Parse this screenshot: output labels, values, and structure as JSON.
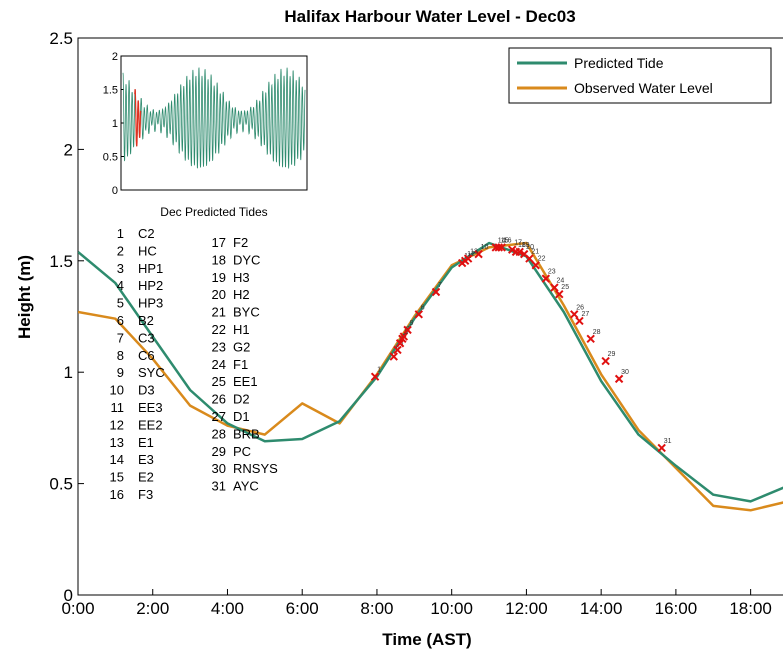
{
  "chart_data": {
    "type": "line",
    "title": "Halifax Harbour Water Level - Dec03",
    "xlabel": "Time (AST)",
    "ylabel": "Height (m)",
    "xlim": [
      0,
      19
    ],
    "ylim": [
      0,
      2.5
    ],
    "x_ticks": [
      "0:00",
      "2:00",
      "4:00",
      "6:00",
      "8:00",
      "10:00",
      "12:00",
      "14:00",
      "16:00",
      "18:00"
    ],
    "y_ticks": [
      "0",
      "0.5",
      "1",
      "1.5",
      "2",
      "2.5"
    ],
    "grid": false,
    "legend_position": "top-right",
    "series": [
      {
        "name": "Predicted Tide",
        "color": "#2e8b6e",
        "x": [
          0,
          1,
          2,
          3,
          4,
          5,
          6,
          7,
          8,
          9,
          10,
          11,
          12,
          13,
          14,
          15,
          16,
          17,
          18,
          19
        ],
        "y": [
          1.54,
          1.4,
          1.16,
          0.92,
          0.77,
          0.69,
          0.7,
          0.78,
          0.98,
          1.24,
          1.47,
          1.58,
          1.52,
          1.27,
          0.96,
          0.72,
          0.58,
          0.45,
          0.42,
          0.49
        ]
      },
      {
        "name": "Observed Water Level",
        "color": "#d98a1c",
        "x": [
          0,
          1,
          2,
          3,
          4,
          5,
          6,
          7,
          8,
          9,
          10,
          11,
          12,
          13,
          14,
          15,
          16,
          17,
          18,
          19
        ],
        "y": [
          1.27,
          1.24,
          1.06,
          0.85,
          0.76,
          0.72,
          0.86,
          0.77,
          0.99,
          1.25,
          1.48,
          1.56,
          1.58,
          1.3,
          0.99,
          0.74,
          0.57,
          0.4,
          0.38,
          0.42
        ]
      }
    ],
    "stations": [
      {
        "n": 1,
        "name": "C2",
        "t": 7.95,
        "h": 0.98
      },
      {
        "n": 2,
        "name": "HC",
        "t": 8.45,
        "h": 1.07
      },
      {
        "n": 3,
        "name": "HP1",
        "t": 8.55,
        "h": 1.1
      },
      {
        "n": 4,
        "name": "HP2",
        "t": 8.62,
        "h": 1.13
      },
      {
        "n": 5,
        "name": "HP3",
        "t": 8.72,
        "h": 1.16
      },
      {
        "n": 6,
        "name": "B2",
        "t": 9.12,
        "h": 1.26
      },
      {
        "n": 7,
        "name": "C3",
        "t": 9.58,
        "h": 1.36
      },
      {
        "n": 8,
        "name": "C6",
        "t": 8.68,
        "h": 1.15
      },
      {
        "n": 9,
        "name": "SYC",
        "t": 8.82,
        "h": 1.19
      },
      {
        "n": 10,
        "name": "D3",
        "t": 10.72,
        "h": 1.53
      },
      {
        "n": 11,
        "name": "EE3",
        "t": 10.28,
        "h": 1.49
      },
      {
        "n": 12,
        "name": "EE2",
        "t": 10.36,
        "h": 1.5
      },
      {
        "n": 13,
        "name": "E1",
        "t": 10.44,
        "h": 1.51
      },
      {
        "n": 14,
        "name": "E3",
        "t": 11.18,
        "h": 1.56
      },
      {
        "n": 15,
        "name": "E2",
        "t": 11.26,
        "h": 1.56
      },
      {
        "n": 16,
        "name": "F3",
        "t": 11.34,
        "h": 1.56
      },
      {
        "n": 17,
        "name": "F2",
        "t": 11.62,
        "h": 1.55
      },
      {
        "n": 18,
        "name": "DYC",
        "t": 11.72,
        "h": 1.54
      },
      {
        "n": 19,
        "name": "H3",
        "t": 11.82,
        "h": 1.54
      },
      {
        "n": 20,
        "name": "H2",
        "t": 11.94,
        "h": 1.53
      },
      {
        "n": 21,
        "name": "BYC",
        "t": 12.08,
        "h": 1.51
      },
      {
        "n": 22,
        "name": "H1",
        "t": 12.25,
        "h": 1.48
      },
      {
        "n": 23,
        "name": "G2",
        "t": 12.52,
        "h": 1.42
      },
      {
        "n": 24,
        "name": "F1",
        "t": 12.75,
        "h": 1.38
      },
      {
        "n": 25,
        "name": "EE1",
        "t": 12.88,
        "h": 1.35
      },
      {
        "n": 26,
        "name": "D2",
        "t": 13.28,
        "h": 1.26
      },
      {
        "n": 27,
        "name": "D1",
        "t": 13.42,
        "h": 1.23
      },
      {
        "n": 28,
        "name": "BRB",
        "t": 13.72,
        "h": 1.15
      },
      {
        "n": 29,
        "name": "PC",
        "t": 14.12,
        "h": 1.05
      },
      {
        "n": 30,
        "name": "RNSYS",
        "t": 14.48,
        "h": 0.97
      },
      {
        "n": 31,
        "name": "AYC",
        "t": 15.62,
        "h": 0.66
      }
    ],
    "inset": {
      "title": "Dec Predicted Tides",
      "ylim": [
        0,
        2
      ],
      "y_ticks": [
        "0",
        "0.5",
        "1",
        "1.5",
        "2"
      ],
      "series_color": "#2e8b6e",
      "highlight_color": "#e03020",
      "days": 31,
      "highlight_day": 3
    }
  }
}
